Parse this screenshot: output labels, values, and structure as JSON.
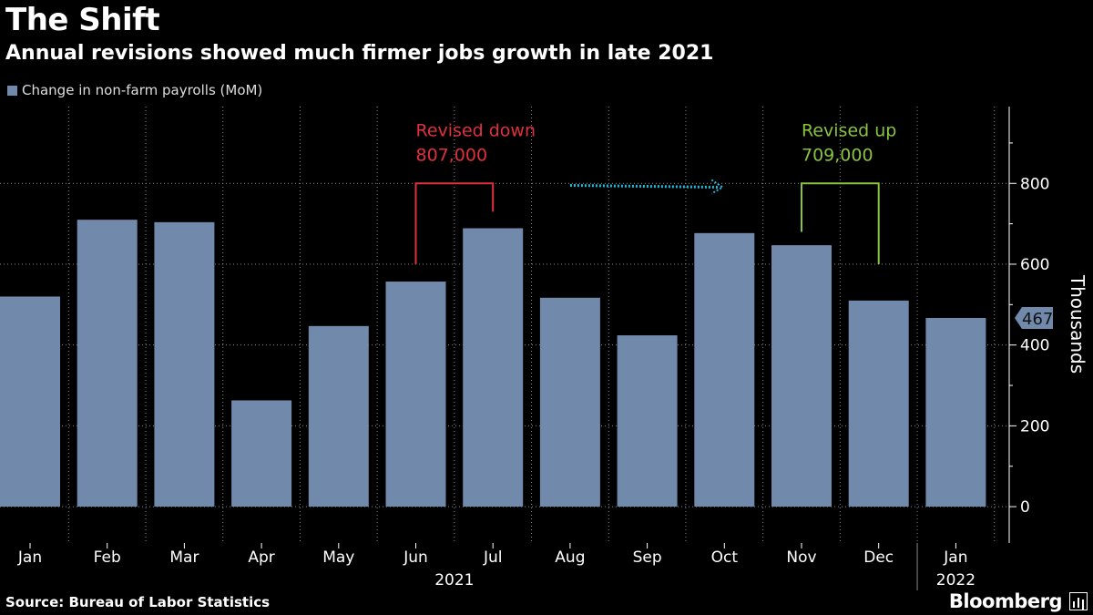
{
  "header": {
    "title": "The Shift",
    "subtitle": "Annual revisions showed much firmer jobs growth in late 2021"
  },
  "footer": {
    "source": "Source: Bureau of Labor Statistics",
    "brand": "Bloomberg"
  },
  "colors": {
    "bar": "#7189ab",
    "revised_down": "#e0303e",
    "revised_up": "#8ac43f",
    "arrow": "#2ab8d8",
    "grid": "#8a8a8a"
  },
  "chart_data": {
    "type": "bar",
    "title": "The Shift",
    "subtitle": "Annual revisions showed much firmer jobs growth in late 2021",
    "categories": [
      "Jan",
      "Feb",
      "Mar",
      "Apr",
      "May",
      "Jun",
      "Jul",
      "Aug",
      "Sep",
      "Oct",
      "Nov",
      "Dec",
      "Jan"
    ],
    "year_labels": [
      "2021",
      "2022"
    ],
    "series": [
      {
        "name": "Change in non-farm payrolls (MoM)",
        "values": [
          520,
          710,
          704,
          263,
          447,
          557,
          689,
          517,
          424,
          677,
          647,
          510,
          467
        ]
      }
    ],
    "ylabel": "Thousands",
    "ylim": [
      -90,
      990
    ],
    "yticks": [
      0,
      200,
      400,
      600,
      800
    ],
    "last_value_label": "467",
    "grid": true,
    "legend": "top-left",
    "annotations": [
      {
        "label": "Revised down",
        "value": "807,000",
        "from_category": "Jun",
        "to_category": "Jul"
      },
      {
        "label": "Revised up",
        "value": "709,000",
        "from_category": "Nov",
        "to_category": "Dec"
      }
    ]
  }
}
